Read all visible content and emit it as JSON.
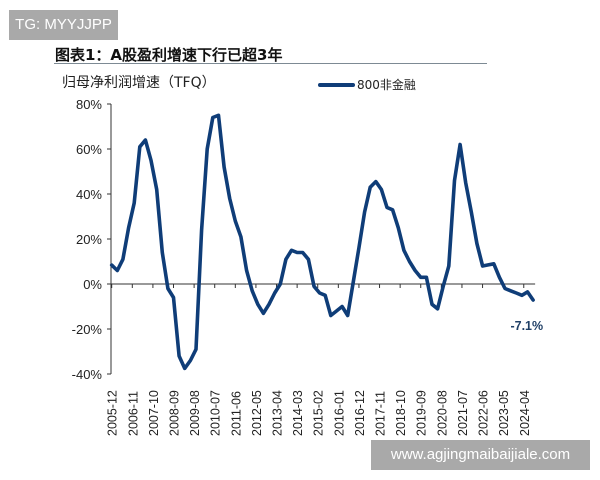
{
  "watermark_top": "TG: MYYJJPP",
  "watermark_bottom": "www.agjingmaibaijiale.com",
  "chart_data": {
    "type": "line",
    "title": "图表1：A股盈利增速下行已超3年",
    "subtitle": "归母净利润增速（TFQ）",
    "ylabel": "",
    "xlabel": "",
    "ylim": [
      -40,
      80
    ],
    "yticks": [
      80,
      60,
      40,
      20,
      0,
      -20,
      -40
    ],
    "ytick_labels": [
      "80%",
      "60%",
      "40%",
      "20%",
      "0%",
      "-20%",
      "-40%"
    ],
    "xtick_labels": [
      "2005-12",
      "2006-11",
      "2007-10",
      "2008-09",
      "2009-08",
      "2010-07",
      "2011-06",
      "2012-05",
      "2013-04",
      "2014-03",
      "2015-02",
      "2016-01",
      "2016-12",
      "2017-11",
      "2018-10",
      "2019-09",
      "2020-08",
      "2021-07",
      "2022-06",
      "2023-05",
      "2024-04"
    ],
    "grid": false,
    "legend_position": "top-right",
    "color": "#0f3d78",
    "annotation": "-7.1%",
    "x": [
      "2005-12",
      "2006-03",
      "2006-06",
      "2006-09",
      "2006-12",
      "2007-03",
      "2007-06",
      "2007-09",
      "2007-12",
      "2008-03",
      "2008-06",
      "2008-09",
      "2008-12",
      "2009-03",
      "2009-06",
      "2009-09",
      "2009-12",
      "2010-03",
      "2010-06",
      "2010-09",
      "2010-12",
      "2011-03",
      "2011-06",
      "2011-09",
      "2011-12",
      "2012-03",
      "2012-06",
      "2012-09",
      "2012-12",
      "2013-03",
      "2013-06",
      "2013-09",
      "2013-12",
      "2014-03",
      "2014-06",
      "2014-09",
      "2014-12",
      "2015-03",
      "2015-06",
      "2015-09",
      "2015-12",
      "2016-03",
      "2016-06",
      "2016-09",
      "2016-12",
      "2017-03",
      "2017-06",
      "2017-09",
      "2017-12",
      "2018-03",
      "2018-06",
      "2018-09",
      "2018-12",
      "2019-03",
      "2019-06",
      "2019-09",
      "2019-12",
      "2020-03",
      "2020-06",
      "2020-09",
      "2020-12",
      "2021-03",
      "2021-06",
      "2021-09",
      "2021-12",
      "2022-03",
      "2022-06",
      "2022-09",
      "2022-12",
      "2023-03",
      "2023-06",
      "2023-09",
      "2023-12",
      "2024-03",
      "2024-06",
      "2024-09"
    ],
    "series": [
      {
        "name": "800非金融",
        "values": [
          8.4,
          6,
          11,
          25,
          36,
          61,
          64,
          55,
          42,
          14,
          -2,
          -6,
          -32,
          -37.5,
          -34,
          -29,
          24,
          60,
          74,
          75,
          52,
          38,
          28,
          21,
          6,
          -3,
          -9,
          -13,
          -9,
          -4,
          0,
          11,
          15,
          14,
          14,
          11,
          -1,
          -4,
          -5,
          -14,
          -12,
          -10,
          -14,
          1,
          16,
          32,
          43,
          45.5,
          42,
          34,
          33,
          25,
          15,
          10,
          6,
          3,
          3,
          -9,
          -11,
          -1,
          8,
          46,
          62,
          45,
          32,
          18,
          8,
          8.5,
          9,
          3,
          -2,
          -3,
          -4,
          -5,
          -3.5,
          -7.1
        ]
      }
    ]
  }
}
